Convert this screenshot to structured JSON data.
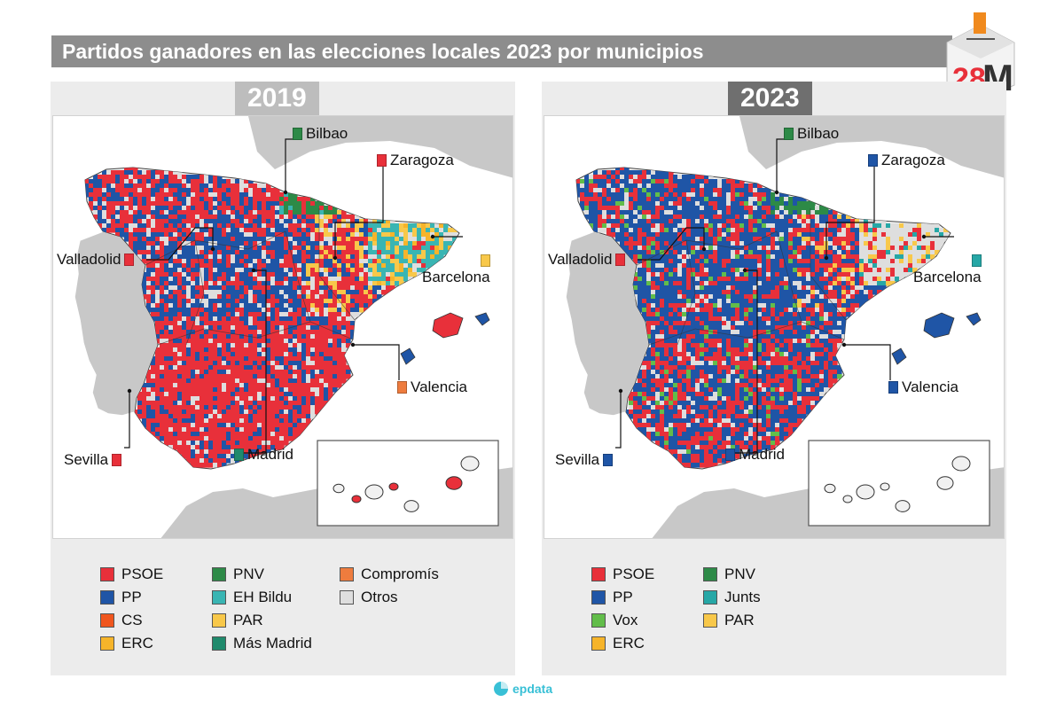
{
  "title": "Partidos ganadores en las elecciones locales 2023 por municipios",
  "logo": {
    "number": "28",
    "letter": "M"
  },
  "colors": {
    "PSOE": "#e8303a",
    "PP": "#1f55a6",
    "CS": "#f0561e",
    "ERC": "#f6b42a",
    "PNV": "#2d8a47",
    "EH Bildu": "#39b5b3",
    "PAR": "#f8c84a",
    "Más Madrid": "#1f8a6c",
    "Compromís": "#ee7c3e",
    "Otros": "#dedede",
    "Vox": "#62bd4a",
    "Junts": "#26a7a6",
    "land": "#c8c8c8",
    "sea": "#ffffff"
  },
  "panels": [
    {
      "year": "2019",
      "cities": [
        {
          "name": "Bilbao",
          "party": "PNV"
        },
        {
          "name": "Zaragoza",
          "party": "PSOE"
        },
        {
          "name": "Valladolid",
          "party": "PSOE"
        },
        {
          "name": "Barcelona",
          "party": "PAR"
        },
        {
          "name": "Valencia",
          "party": "Compromís"
        },
        {
          "name": "Sevilla",
          "party": "PSOE"
        },
        {
          "name": "Madrid",
          "party": "Más Madrid"
        }
      ],
      "legend": [
        {
          "label": "PSOE"
        },
        {
          "label": "PP"
        },
        {
          "label": "CS"
        },
        {
          "label": "ERC"
        },
        {
          "label": "PNV"
        },
        {
          "label": "EH Bildu"
        },
        {
          "label": "PAR"
        },
        {
          "label": "Más Madrid"
        },
        {
          "label": "Compromís"
        },
        {
          "label": "Otros"
        }
      ]
    },
    {
      "year": "2023",
      "cities": [
        {
          "name": "Bilbao",
          "party": "PNV"
        },
        {
          "name": "Zaragoza",
          "party": "PP"
        },
        {
          "name": "Valladolid",
          "party": "PSOE"
        },
        {
          "name": "Barcelona",
          "party": "Junts"
        },
        {
          "name": "Valencia",
          "party": "PP"
        },
        {
          "name": "Sevilla",
          "party": "PP"
        },
        {
          "name": "Madrid",
          "party": "PP"
        }
      ],
      "legend": [
        {
          "label": "PSOE"
        },
        {
          "label": "PP"
        },
        {
          "label": "Vox"
        },
        {
          "label": "ERC"
        },
        {
          "label": "PNV"
        },
        {
          "label": "Junts"
        },
        {
          "label": "PAR"
        }
      ]
    }
  ],
  "footer": {
    "brand": "epdata"
  }
}
